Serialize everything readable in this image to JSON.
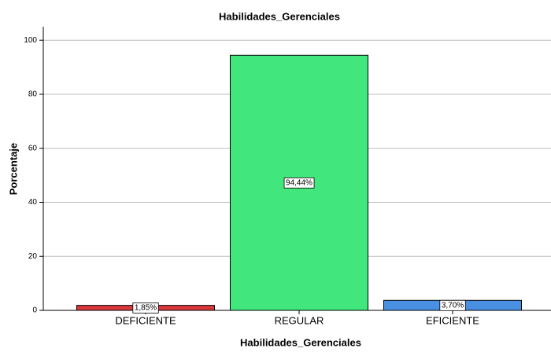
{
  "chart_data": {
    "type": "bar",
    "title": "Habilidades_Gerenciales",
    "x_label": "Habilidades_Gerenciales",
    "y_label": "Porcentaje",
    "categories": [
      "DEFICIENTE",
      "REGULAR",
      "EFICIENTE"
    ],
    "values": [
      1.85,
      94.44,
      3.7
    ],
    "value_labels": [
      "1,85%",
      "94,44%",
      "3,70%"
    ],
    "colors": [
      "#d9383a",
      "#41e77c",
      "#4a90e2"
    ],
    "ylim": [
      0,
      105
    ],
    "yticks": [
      0,
      20,
      40,
      60,
      80,
      100
    ],
    "grid": true
  }
}
